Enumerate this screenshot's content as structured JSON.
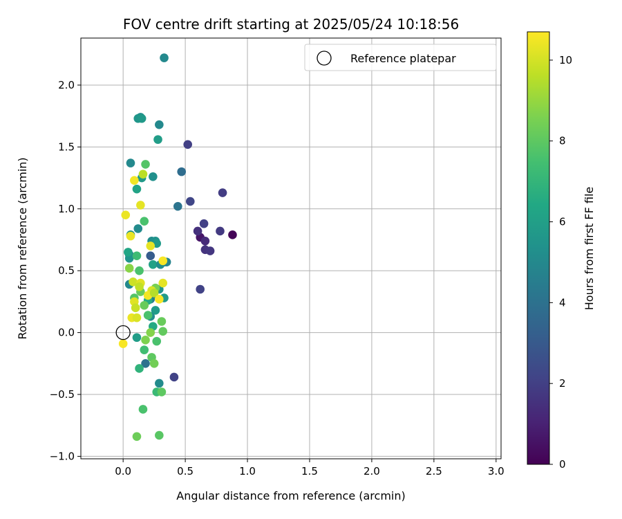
{
  "chart_data": {
    "type": "scatter",
    "title": "FOV centre drift starting at 2025/05/24 10:18:56",
    "xlabel": "Angular distance from reference (arcmin)",
    "ylabel": "Rotation from reference (arcmin)",
    "xlim": [
      -0.34,
      3.04
    ],
    "ylim": [
      -1.02,
      2.38
    ],
    "xticks": [
      0.0,
      0.5,
      1.0,
      1.5,
      2.0,
      2.5,
      3.0
    ],
    "xtick_labels": [
      "0.0",
      "0.5",
      "1.0",
      "1.5",
      "2.0",
      "2.5",
      "3.0"
    ],
    "yticks": [
      -1.0,
      -0.5,
      0.0,
      0.5,
      1.0,
      1.5,
      2.0
    ],
    "ytick_labels": [
      "−1.0",
      "−0.5",
      "0.0",
      "0.5",
      "1.0",
      "1.5",
      "2.0"
    ],
    "grid": true,
    "legend": {
      "placement": "top-right",
      "entries": [
        "Reference platepar"
      ]
    },
    "reference": {
      "x": 0.0,
      "y": 0.0
    },
    "colorbar": {
      "label": "Hours from first FF file",
      "range": [
        0,
        10.7
      ],
      "ticks": [
        0,
        2,
        4,
        6,
        8,
        10
      ],
      "tick_labels": [
        "0",
        "2",
        "4",
        "6",
        "8",
        "10"
      ],
      "colormap": "viridis"
    },
    "points": [
      {
        "x": 0.88,
        "y": 0.79,
        "h": 0.1
      },
      {
        "x": 0.62,
        "y": 0.77,
        "h": 0.6
      },
      {
        "x": 0.66,
        "y": 0.74,
        "h": 1.3
      },
      {
        "x": 0.6,
        "y": 0.82,
        "h": 1.5
      },
      {
        "x": 0.66,
        "y": 0.67,
        "h": 1.6
      },
      {
        "x": 0.7,
        "y": 0.66,
        "h": 1.7
      },
      {
        "x": 0.78,
        "y": 0.82,
        "h": 1.8
      },
      {
        "x": 0.65,
        "y": 0.88,
        "h": 2.0
      },
      {
        "x": 0.8,
        "y": 1.13,
        "h": 1.9
      },
      {
        "x": 0.52,
        "y": 1.52,
        "h": 2.0
      },
      {
        "x": 0.54,
        "y": 1.06,
        "h": 2.2
      },
      {
        "x": 0.62,
        "y": 0.35,
        "h": 2.1
      },
      {
        "x": 0.41,
        "y": -0.36,
        "h": 2.1
      },
      {
        "x": 0.47,
        "y": 1.3,
        "h": 3.8
      },
      {
        "x": 0.44,
        "y": 1.02,
        "h": 4.1
      },
      {
        "x": 0.33,
        "y": 2.22,
        "h": 5.0
      },
      {
        "x": 0.29,
        "y": 1.68,
        "h": 5.0
      },
      {
        "x": 0.28,
        "y": 1.56,
        "h": 5.9
      },
      {
        "x": 0.14,
        "y": 1.74,
        "h": 5.2
      },
      {
        "x": 0.12,
        "y": 1.73,
        "h": 5.6
      },
      {
        "x": 0.15,
        "y": 1.73,
        "h": 5.7
      },
      {
        "x": 0.06,
        "y": 1.37,
        "h": 5.0
      },
      {
        "x": 0.24,
        "y": 1.26,
        "h": 5.3
      },
      {
        "x": 0.15,
        "y": 1.25,
        "h": 5.7
      },
      {
        "x": 0.11,
        "y": 1.16,
        "h": 6.2
      },
      {
        "x": 0.12,
        "y": 0.84,
        "h": 5.1
      },
      {
        "x": 0.06,
        "y": 0.79,
        "h": 5.3
      },
      {
        "x": 0.23,
        "y": 0.74,
        "h": 5.2
      },
      {
        "x": 0.26,
        "y": 0.74,
        "h": 5.4
      },
      {
        "x": 0.27,
        "y": 0.72,
        "h": 5.8
      },
      {
        "x": 0.05,
        "y": 0.63,
        "h": 4.8
      },
      {
        "x": 0.05,
        "y": 0.6,
        "h": 5.5
      },
      {
        "x": 0.04,
        "y": 0.65,
        "h": 6.3
      },
      {
        "x": 0.22,
        "y": 0.62,
        "h": 3.1
      },
      {
        "x": 0.33,
        "y": 0.57,
        "h": 3.6
      },
      {
        "x": 0.35,
        "y": 0.57,
        "h": 4.8
      },
      {
        "x": 0.24,
        "y": 0.55,
        "h": 6.1
      },
      {
        "x": 0.3,
        "y": 0.55,
        "h": 5.2
      },
      {
        "x": 0.05,
        "y": 0.39,
        "h": 5.0
      },
      {
        "x": 0.29,
        "y": 0.35,
        "h": 5.5
      },
      {
        "x": 0.24,
        "y": 0.31,
        "h": 4.6
      },
      {
        "x": 0.33,
        "y": 0.28,
        "h": 5.8
      },
      {
        "x": 0.22,
        "y": 0.27,
        "h": 4.6
      },
      {
        "x": 0.2,
        "y": 0.26,
        "h": 6.5
      },
      {
        "x": 0.26,
        "y": 0.18,
        "h": 5.8
      },
      {
        "x": 0.22,
        "y": 0.13,
        "h": 5.2
      },
      {
        "x": 0.24,
        "y": 0.05,
        "h": 6.5
      },
      {
        "x": 0.18,
        "y": -0.25,
        "h": 4.0
      },
      {
        "x": 0.29,
        "y": -0.41,
        "h": 5.1
      },
      {
        "x": 0.11,
        "y": -0.04,
        "h": 5.9
      },
      {
        "x": 0.18,
        "y": 1.36,
        "h": 7.8
      },
      {
        "x": 0.17,
        "y": 0.9,
        "h": 7.6
      },
      {
        "x": 0.11,
        "y": 0.62,
        "h": 7.3
      },
      {
        "x": 0.13,
        "y": 0.5,
        "h": 7.6
      },
      {
        "x": 0.17,
        "y": 0.22,
        "h": 8.2
      },
      {
        "x": 0.2,
        "y": 0.14,
        "h": 7.6
      },
      {
        "x": 0.31,
        "y": 0.09,
        "h": 8.2
      },
      {
        "x": 0.22,
        "y": 0.0,
        "h": 8.7
      },
      {
        "x": 0.32,
        "y": 0.01,
        "h": 8.1
      },
      {
        "x": 0.18,
        "y": -0.06,
        "h": 8.6
      },
      {
        "x": 0.27,
        "y": -0.07,
        "h": 7.6
      },
      {
        "x": 0.17,
        "y": -0.14,
        "h": 7.4
      },
      {
        "x": 0.23,
        "y": -0.2,
        "h": 8.0
      },
      {
        "x": 0.25,
        "y": -0.25,
        "h": 8.4
      },
      {
        "x": 0.13,
        "y": -0.29,
        "h": 6.9
      },
      {
        "x": 0.27,
        "y": -0.48,
        "h": 7.2
      },
      {
        "x": 0.31,
        "y": -0.48,
        "h": 8.0
      },
      {
        "x": 0.16,
        "y": -0.62,
        "h": 7.6
      },
      {
        "x": 0.11,
        "y": -0.84,
        "h": 8.3
      },
      {
        "x": 0.29,
        "y": -0.83,
        "h": 7.9
      },
      {
        "x": 0.14,
        "y": 0.33,
        "h": 8.2
      },
      {
        "x": 0.26,
        "y": 0.36,
        "h": 8.5
      },
      {
        "x": 0.05,
        "y": 0.52,
        "h": 8.8
      },
      {
        "x": 0.09,
        "y": 0.28,
        "h": 7.8
      },
      {
        "x": 0.16,
        "y": 1.28,
        "h": 9.6
      },
      {
        "x": 0.09,
        "y": 1.23,
        "h": 10.5
      },
      {
        "x": 0.14,
        "y": 1.03,
        "h": 10.3
      },
      {
        "x": 0.02,
        "y": 0.95,
        "h": 10.4
      },
      {
        "x": 0.06,
        "y": 0.78,
        "h": 10.4
      },
      {
        "x": 0.22,
        "y": 0.7,
        "h": 10.3
      },
      {
        "x": 0.32,
        "y": 0.58,
        "h": 10.6
      },
      {
        "x": 0.08,
        "y": 0.41,
        "h": 9.9
      },
      {
        "x": 0.14,
        "y": 0.4,
        "h": 10.2
      },
      {
        "x": 0.13,
        "y": 0.37,
        "h": 9.7
      },
      {
        "x": 0.32,
        "y": 0.4,
        "h": 10.3
      },
      {
        "x": 0.23,
        "y": 0.34,
        "h": 10.1
      },
      {
        "x": 0.2,
        "y": 0.3,
        "h": 10.5
      },
      {
        "x": 0.25,
        "y": 0.32,
        "h": 9.5
      },
      {
        "x": 0.29,
        "y": 0.27,
        "h": 10.6
      },
      {
        "x": 0.09,
        "y": 0.25,
        "h": 10.2
      },
      {
        "x": 0.1,
        "y": 0.2,
        "h": 9.8
      },
      {
        "x": 0.07,
        "y": 0.12,
        "h": 10.4
      },
      {
        "x": 0.11,
        "y": 0.12,
        "h": 10.1
      },
      {
        "x": 0.0,
        "y": -0.09,
        "h": 10.6
      }
    ]
  }
}
